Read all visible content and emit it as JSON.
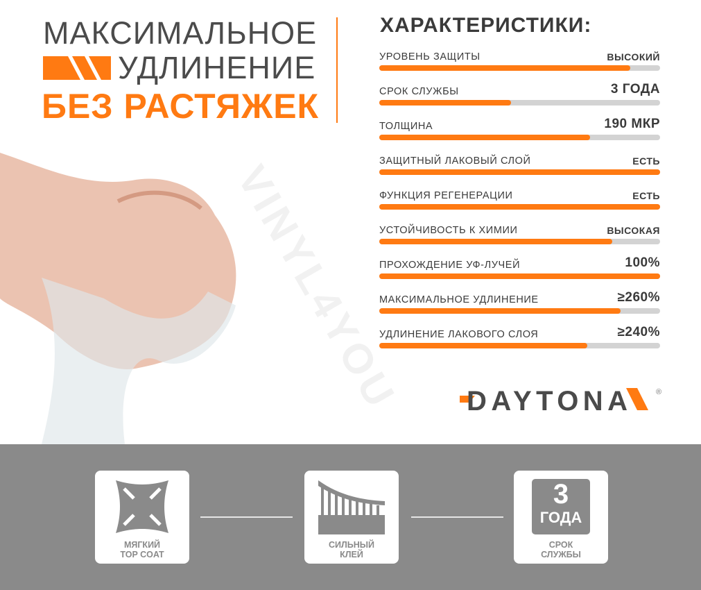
{
  "headline": {
    "line1": "МАКСИМАЛЬНОЕ",
    "line2": "УДЛИНЕНИЕ",
    "line3": "БЕЗ РАСТЯЖЕК"
  },
  "characteristics": {
    "title": "ХАРАКТЕРИСТИКИ:",
    "items": [
      {
        "label": "УРОВЕНЬ ЗАЩИТЫ",
        "value": "ВЫСОКИЙ",
        "level": 0.895
      },
      {
        "label": "СРОК СЛУЖБЫ",
        "value": "3 ГОДА",
        "level": 0.47
      },
      {
        "label": "ТОЛЩИНА",
        "value": "190 МКР",
        "level": 0.75
      },
      {
        "label": "ЗАЩИТНЫЙ ЛАКОВЫЙ СЛОЙ",
        "value": "ЕСТЬ",
        "level": 1
      },
      {
        "label": "ФУНКЦИЯ РЕГЕНЕРАЦИИ",
        "value": "ЕСТЬ",
        "level": 1
      },
      {
        "label": "УСТОЙЧИВОСТЬ К ХИМИИ",
        "value": "ВЫСОКАЯ",
        "level": 0.83
      },
      {
        "label": "ПРОХОЖДЕНИЕ УФ-ЛУЧЕЙ",
        "value": "100%",
        "level": 1
      },
      {
        "label": "МАКСИМАЛЬНОЕ УДЛИНЕНИЕ",
        "value": "≥260%",
        "level": 0.86
      },
      {
        "label": "УДЛИНЕНИЕ ЛАКОВОГО СЛОЯ",
        "value": "≥240%",
        "level": 0.74
      }
    ]
  },
  "brand": {
    "logo": "DAYTONA",
    "registered": "®"
  },
  "watermark": "VINYL4YOU",
  "features": [
    {
      "icon": "stretch-arrows-icon",
      "line1": "МЯГКИЙ",
      "line2": "TOP COAT"
    },
    {
      "icon": "adhesive-icon",
      "line1": "СИЛЬНЫЙ",
      "line2": "КЛЕЙ"
    },
    {
      "icon": "badge-icon",
      "badge_num": "3",
      "badge_unit": "ГОДА",
      "line1": "СРОК",
      "line2": "СЛУЖБЫ"
    }
  ],
  "colors": {
    "accent": "#ff7a12",
    "text": "#3a3a3a",
    "band": "#8a8a8a",
    "track": "#d3d3d3"
  }
}
